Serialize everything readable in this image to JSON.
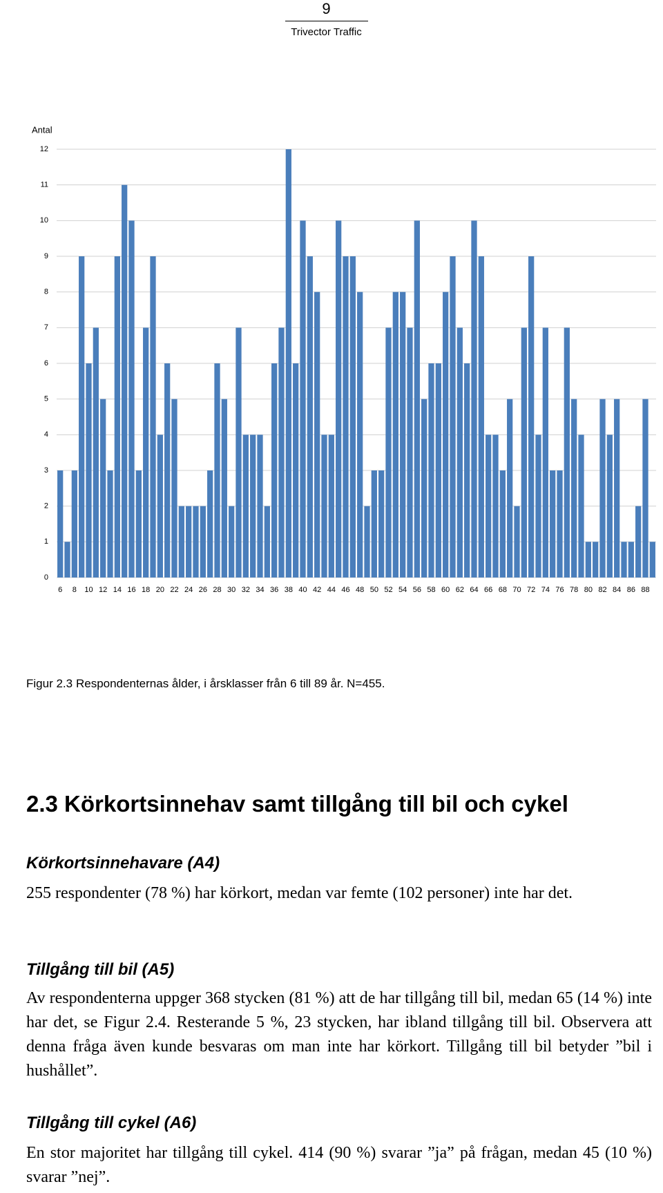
{
  "header": {
    "page_number": "9",
    "company": "Trivector Traffic"
  },
  "chart_data": {
    "type": "bar",
    "y_label": "Antal",
    "categories": [
      "6",
      null,
      "8",
      null,
      "10",
      null,
      "12",
      null,
      "14",
      null,
      "16",
      null,
      "18",
      null,
      "20",
      null,
      "22",
      null,
      "24",
      null,
      "26",
      null,
      "28",
      null,
      "30",
      null,
      "32",
      null,
      "34",
      null,
      "36",
      null,
      "38",
      null,
      "40",
      null,
      "42",
      null,
      "44",
      null,
      "46",
      null,
      "48",
      null,
      "50",
      null,
      "52",
      null,
      "54",
      null,
      "56",
      null,
      "58",
      null,
      "60",
      null,
      "62",
      null,
      "64",
      null,
      "66",
      null,
      "68",
      null,
      "70",
      null,
      "72",
      null,
      "74",
      null,
      "76",
      null,
      "78",
      null,
      "80",
      null,
      "82",
      null,
      "84",
      null,
      "86",
      null,
      "88",
      null
    ],
    "values": [
      3,
      1,
      3,
      9,
      6,
      7,
      5,
      3,
      9,
      11,
      10,
      3,
      7,
      9,
      4,
      6,
      5,
      2,
      2,
      2,
      2,
      3,
      6,
      5,
      2,
      7,
      4,
      4,
      4,
      2,
      6,
      7,
      12,
      6,
      10,
      9,
      8,
      4,
      4,
      10,
      9,
      9,
      8,
      2,
      3,
      3,
      7,
      8,
      8,
      7,
      10,
      5,
      6,
      6,
      8,
      9,
      7,
      6,
      10,
      9,
      4,
      4,
      3,
      5,
      2,
      7,
      9,
      4,
      7,
      3,
      3,
      7,
      5,
      4,
      1,
      1,
      5,
      4,
      5,
      1,
      1,
      2,
      5,
      1
    ],
    "color": "#4a7ebb",
    "ylim": [
      0,
      12
    ],
    "yticks": [
      0,
      1,
      2,
      3,
      4,
      5,
      6,
      7,
      8,
      9,
      10,
      11,
      12
    ],
    "grid": true
  },
  "caption": {
    "label": "Figur 2.3",
    "text": "Respondenternas ålder, i årsklasser från 6 till 89 år. N=455."
  },
  "section": {
    "title": "2.3 Körkortsinnehav samt tillgång till bil och cykel",
    "subsections": [
      {
        "title": "Körkortsinnehavare (A4)",
        "text": "255 respondenter (78 %) har körkort, medan var femte (102 personer) inte har det."
      },
      {
        "title": "Tillgång till bil (A5)",
        "text": "Av respondenterna uppger 368 stycken (81 %) att de har tillgång till bil, medan 65 (14 %) inte har det, se Figur 2.4. Resterande 5 %, 23 stycken, har ibland tillgång till bil. Observera att denna fråga även kunde besvaras om man inte har körkort. Tillgång till bil betyder ”bil i hushållet”."
      },
      {
        "title": "Tillgång till cykel (A6)",
        "text": "En stor majoritet har tillgång till cykel. 414 (90 %) svarar ”ja” på frågan, medan 45 (10 %) svarar ”nej”."
      }
    ]
  }
}
